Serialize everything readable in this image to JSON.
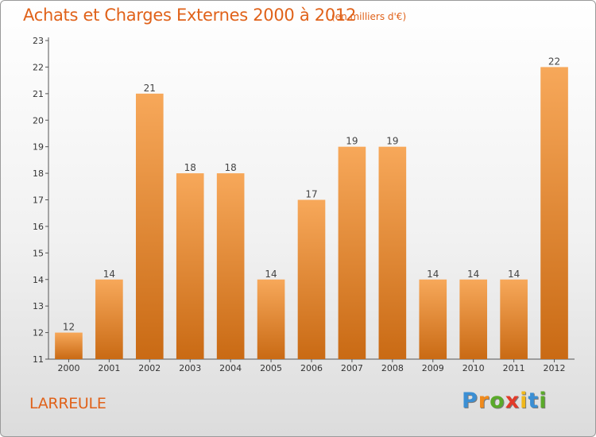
{
  "header": {
    "title": "Achats et Charges Externes 2000 à 2012",
    "subtitle": "(en milliers d'€)"
  },
  "footer": {
    "commune": "LARREULE",
    "logo": [
      "P",
      "r",
      "o",
      "x",
      "i",
      "t",
      "i"
    ],
    "logo_colors": [
      "#3b8fd4",
      "#f08a1c",
      "#5aaa2a",
      "#e23b2a",
      "#f0b81c",
      "#3b8fd4",
      "#5aaa2a"
    ]
  },
  "chart_data": {
    "type": "bar",
    "categories": [
      "2000",
      "2001",
      "2002",
      "2003",
      "2004",
      "2005",
      "2006",
      "2007",
      "2008",
      "2009",
      "2010",
      "2011",
      "2012"
    ],
    "values": [
      12,
      14,
      21,
      18,
      18,
      14,
      17,
      19,
      19,
      14,
      14,
      14,
      22
    ],
    "data_labels": [
      "12",
      "14",
      "21",
      "18",
      "18",
      "14",
      "17",
      "19",
      "19",
      "14",
      "14",
      "14",
      "22"
    ],
    "title": "Achats et Charges Externes 2000 à 2012",
    "ylim": [
      11,
      23
    ],
    "yticks": [
      11,
      12,
      13,
      14,
      15,
      16,
      17,
      18,
      19,
      20,
      21,
      22,
      23
    ],
    "grid": false,
    "bar_color_top": "#f7a85a",
    "bar_color_bottom": "#c96a14"
  }
}
